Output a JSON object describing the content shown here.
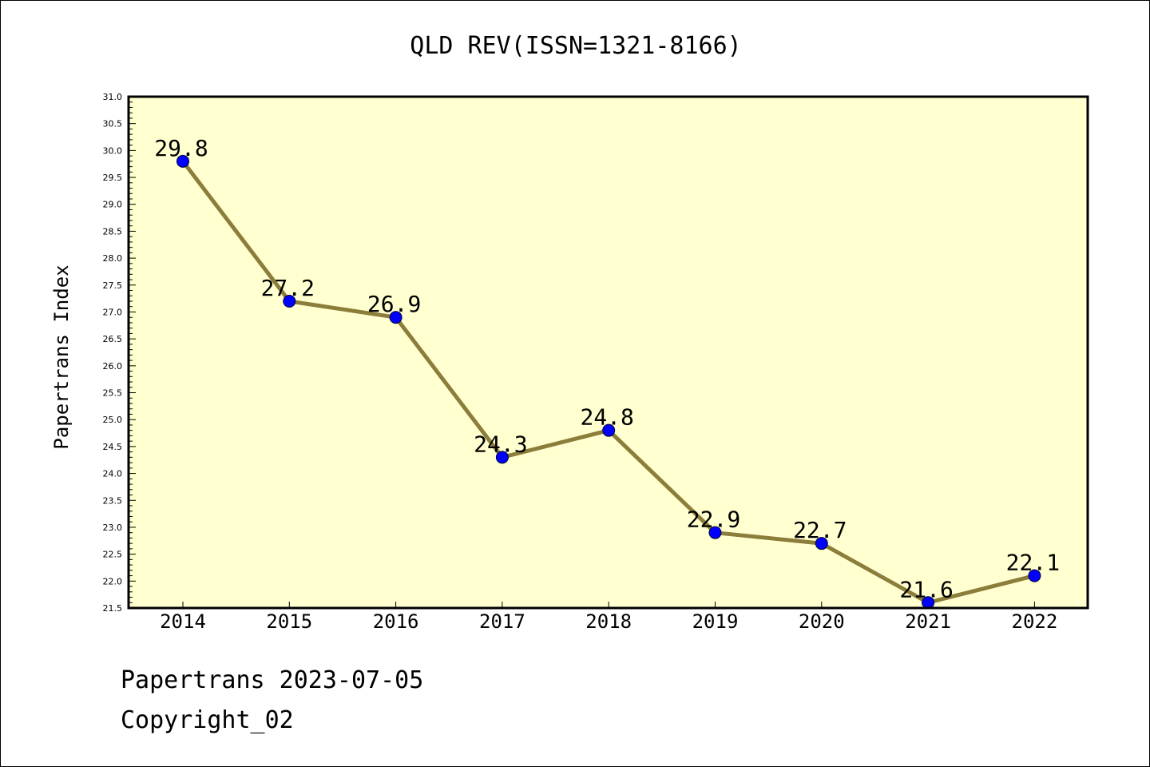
{
  "colors": {
    "plot_background": "#ffffd0",
    "line": "#8b7d3a",
    "marker": "#0000ff",
    "axis": "#000000"
  },
  "footer": {
    "line1": "Papertrans 2023-07-05",
    "line2": "Copyright_02"
  },
  "chart_data": {
    "type": "line",
    "title": "QLD REV(ISSN=1321-8166)",
    "xlabel": "",
    "ylabel": "Papertrans Index",
    "ylim": [
      21.5,
      31.0
    ],
    "y_major_step": 0.5,
    "y_minor_step": 0.1,
    "grid": false,
    "x": [
      "2014",
      "2015",
      "2016",
      "2017",
      "2018",
      "2019",
      "2020",
      "2021",
      "2022"
    ],
    "series": [
      {
        "values": [
          29.8,
          27.2,
          26.9,
          24.3,
          24.8,
          22.9,
          22.7,
          21.6,
          22.1
        ],
        "labels": [
          "29.8",
          "27.2",
          "26.9",
          "24.3",
          "24.8",
          "22.9",
          "22.7",
          "21.6",
          "22.1"
        ]
      }
    ]
  }
}
